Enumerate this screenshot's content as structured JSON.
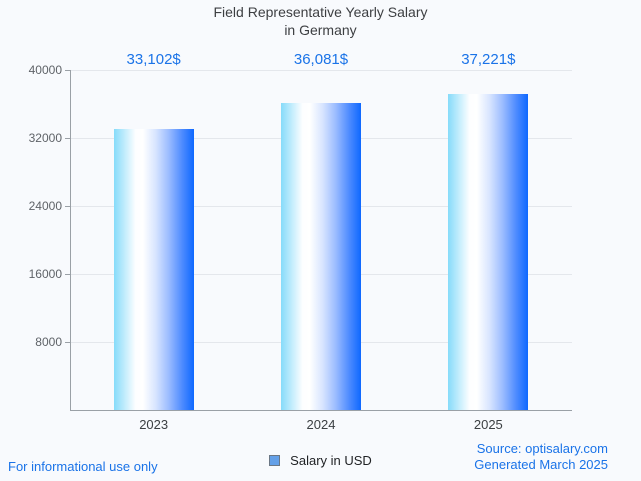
{
  "title": {
    "line1": "Field Representative Yearly Salary",
    "line2": "in Germany"
  },
  "chart_data": {
    "type": "bar",
    "categories": [
      "2023",
      "2024",
      "2025"
    ],
    "values": [
      33102,
      36081,
      37221
    ],
    "value_labels": [
      "33,102$",
      "36,081$",
      "37,221$"
    ],
    "series_name": "Salary in USD",
    "title": "Field Representative Yearly Salary in Germany",
    "xlabel": "",
    "ylabel": "",
    "ylim": [
      0,
      40000
    ],
    "yticks": [
      8000,
      16000,
      24000,
      32000,
      40000
    ],
    "grid": "horizontal",
    "legend_position": "bottom-center",
    "bar_gradient": [
      "#86dbfa",
      "#ffffff",
      "#0e68ff"
    ],
    "value_label_color": "#1a73e8"
  },
  "legend": {
    "label": "Salary in USD",
    "swatch_color": "#64a0e8"
  },
  "footer": {
    "disclaimer": "For informational use only",
    "source_line1": "Source: optisalary.com",
    "source_line2": "Generated March 2025"
  }
}
